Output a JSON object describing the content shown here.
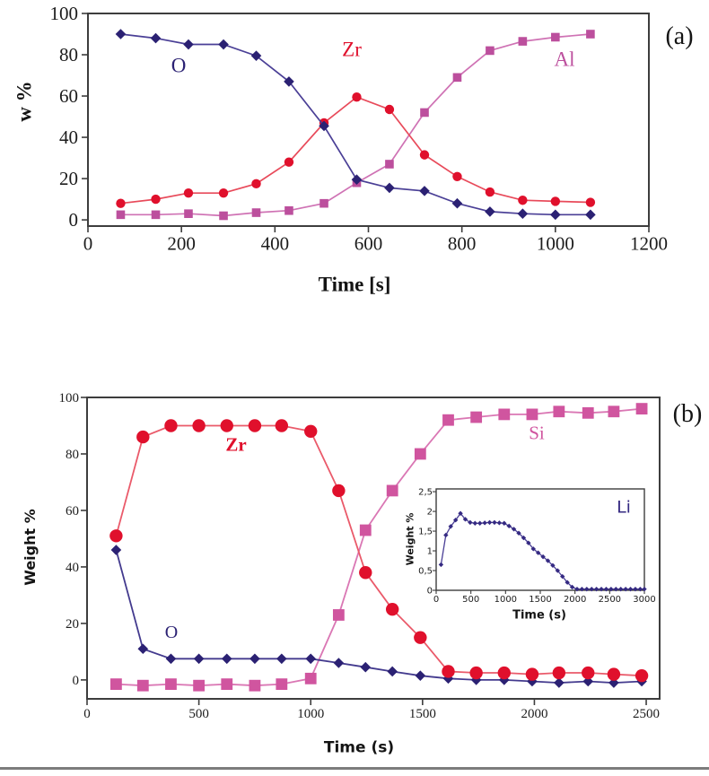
{
  "figure": {
    "description": "Two-panel depth-profile line charts of weight percent versus sputtering time",
    "panel_a_label": "(a)",
    "panel_b_label": "(b)"
  },
  "chart_data": [
    {
      "id": "panel-a",
      "type": "line",
      "panel_label": "(a)",
      "xlabel": "Time [s]",
      "ylabel": "w %",
      "xlim": [
        0,
        1200
      ],
      "ylim": [
        -3,
        100
      ],
      "xticks": [
        0,
        200,
        400,
        600,
        800,
        1000,
        1200
      ],
      "yticks": [
        0,
        20,
        40,
        60,
        80,
        100
      ],
      "grid": false,
      "legend_position": "inline-labels",
      "series": [
        {
          "name": "Al",
          "label": "Al",
          "marker": "square",
          "color": "#bc4f9d",
          "line_color": "#cf72b4",
          "marker_size": 4.8,
          "line_width": 1.7,
          "x": [
            70,
            145,
            215,
            290,
            360,
            430,
            505,
            575,
            645,
            720,
            790,
            860,
            930,
            1000,
            1075
          ],
          "y": [
            2.5,
            2.5,
            3,
            2,
            3.5,
            4.5,
            8,
            18,
            27,
            52,
            69,
            82,
            86.5,
            88.5,
            90
          ]
        },
        {
          "name": "Zr",
          "label": "Zr",
          "marker": "circle",
          "color": "#e0102c",
          "line_color": "#e84a5a",
          "marker_size": 5.2,
          "line_width": 1.7,
          "x": [
            70,
            145,
            215,
            290,
            360,
            430,
            505,
            575,
            645,
            720,
            790,
            860,
            930,
            1000,
            1075
          ],
          "y": [
            8,
            10,
            13,
            13,
            17.5,
            28,
            47,
            59.5,
            53.5,
            31.5,
            21,
            13.5,
            9.5,
            9,
            8.5
          ]
        },
        {
          "name": "O",
          "label": "O",
          "marker": "diamond",
          "color": "#2b2173",
          "line_color": "#4a3f96",
          "marker_size": 5.8,
          "line_width": 1.7,
          "x": [
            70,
            145,
            215,
            290,
            360,
            430,
            505,
            575,
            645,
            720,
            790,
            860,
            930,
            1000,
            1075
          ],
          "y": [
            90,
            88,
            85,
            85,
            79.5,
            67,
            45.5,
            19.5,
            15.5,
            14,
            8,
            4,
            3,
            2.5,
            2.5
          ]
        }
      ]
    },
    {
      "id": "panel-b",
      "type": "line",
      "panel_label": "(b)",
      "xlabel": "Time (s)",
      "ylabel": "Weight %",
      "xlim": [
        0,
        2560
      ],
      "ylim": [
        -6.7,
        100
      ],
      "xticks": [
        0,
        500,
        1000,
        1500,
        2000,
        2500
      ],
      "yticks": [
        0,
        20,
        40,
        60,
        80,
        100
      ],
      "grid": false,
      "legend_position": "inline-labels",
      "series": [
        {
          "name": "Si",
          "label": "Si",
          "marker": "square",
          "color": "#d0559f",
          "line_color": "#da77b4",
          "marker_size": 6.4,
          "line_width": 1.8,
          "x": [
            130,
            250,
            375,
            500,
            625,
            750,
            870,
            1000,
            1125,
            1245,
            1365,
            1490,
            1615,
            1740,
            1865,
            1990,
            2110,
            2240,
            2355,
            2480
          ],
          "y": [
            -1.5,
            -2,
            -1.5,
            -2,
            -1.5,
            -2,
            -1.5,
            0.5,
            23,
            53,
            67,
            80,
            92,
            93,
            94,
            94,
            95,
            94.5,
            95,
            96
          ]
        },
        {
          "name": "O",
          "label": "O",
          "marker": "diamond",
          "color": "#2b2173",
          "line_color": "#433a8e",
          "marker_size": 5.8,
          "line_width": 1.8,
          "x": [
            130,
            250,
            375,
            500,
            625,
            750,
            870,
            1000,
            1125,
            1245,
            1365,
            1490,
            1615,
            1740,
            1865,
            1990,
            2110,
            2240,
            2355,
            2480
          ],
          "y": [
            46,
            11,
            7.5,
            7.5,
            7.5,
            7.5,
            7.5,
            7.5,
            6,
            4.5,
            3,
            1.5,
            0.5,
            0,
            0,
            -0.5,
            -1,
            -0.5,
            -1,
            -0.5
          ]
        },
        {
          "name": "Zr",
          "label": "Zr",
          "marker": "circle",
          "color": "#e0102c",
          "line_color": "#ea5a6a",
          "marker_size": 7.2,
          "line_width": 1.8,
          "x": [
            130,
            250,
            375,
            500,
            625,
            750,
            870,
            1000,
            1125,
            1245,
            1365,
            1490,
            1615,
            1740,
            1865,
            1990,
            2110,
            2240,
            2355,
            2480
          ],
          "y": [
            51,
            86,
            90,
            90,
            90,
            90,
            90,
            88,
            67,
            38,
            25,
            15,
            3,
            2.5,
            2.5,
            2,
            2.5,
            2.5,
            2,
            1.5
          ]
        }
      ]
    },
    {
      "id": "li-inset",
      "type": "line",
      "xlabel": "Time (s)",
      "ylabel": "Weight %",
      "xlim": [
        0,
        3000
      ],
      "ylim": [
        0,
        2.57
      ],
      "xticks": [
        0,
        500,
        1000,
        1500,
        2000,
        2500,
        3000
      ],
      "yticks": [
        0,
        0.5,
        1,
        1.5,
        2,
        2.5
      ],
      "ytick_labels": [
        "0",
        "0,5",
        "1",
        "1,5",
        "2",
        "2,5"
      ],
      "grid": false,
      "legend_position": "inline-labels",
      "series": [
        {
          "name": "Li",
          "label": "Li",
          "marker": "diamond",
          "color": "#352a82",
          "line_color": "#4a3f96",
          "marker_size": 2.7,
          "line_width": 1.3,
          "x": [
            70,
            140,
            210,
            280,
            350,
            420,
            490,
            560,
            630,
            700,
            770,
            840,
            910,
            980,
            1050,
            1120,
            1190,
            1260,
            1330,
            1400,
            1470,
            1540,
            1610,
            1680,
            1750,
            1820,
            1890,
            1960,
            2030,
            2100,
            2170,
            2240,
            2310,
            2380,
            2450,
            2520,
            2590,
            2660,
            2730,
            2800,
            2870,
            2940,
            3000
          ],
          "y": [
            0.65,
            1.4,
            1.62,
            1.78,
            1.95,
            1.8,
            1.72,
            1.7,
            1.7,
            1.71,
            1.72,
            1.72,
            1.71,
            1.7,
            1.63,
            1.55,
            1.45,
            1.33,
            1.2,
            1.05,
            0.95,
            0.85,
            0.75,
            0.63,
            0.5,
            0.35,
            0.2,
            0.08,
            0.03,
            0.03,
            0.03,
            0.03,
            0.03,
            0.03,
            0.03,
            0.03,
            0.03,
            0.03,
            0.03,
            0.03,
            0.03,
            0.03,
            0.03
          ]
        }
      ]
    }
  ]
}
